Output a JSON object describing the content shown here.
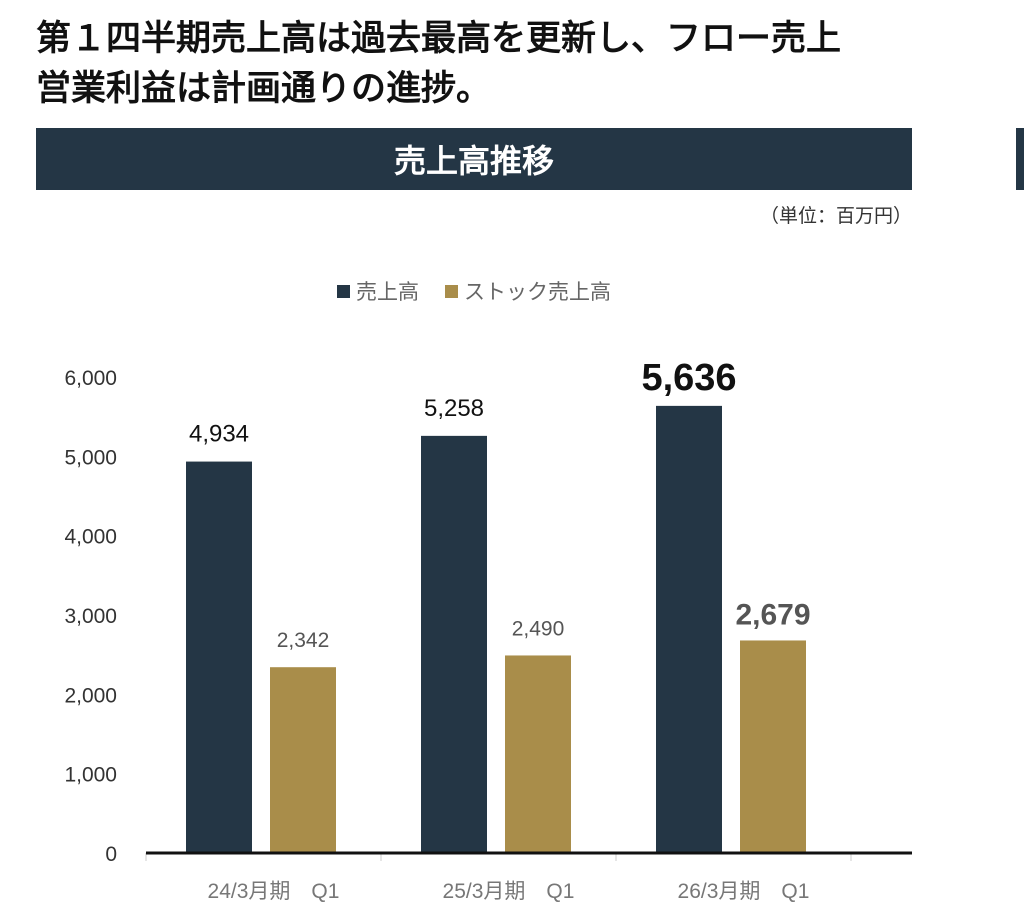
{
  "headline": {
    "line1": "第１四半期売上高は過去最高を更新し、フロー売上",
    "line2": "営業利益は計画通りの進捗。"
  },
  "section_title": "売上高推移",
  "unit_label": "（単位：百万円）",
  "chart_data": {
    "type": "bar",
    "title": "売上高推移",
    "xlabel": "",
    "ylabel": "",
    "ylim": [
      0,
      6000
    ],
    "yticks": [
      0,
      1000,
      2000,
      3000,
      4000,
      5000,
      6000
    ],
    "ytick_labels": [
      "0",
      "1,000",
      "2,000",
      "3,000",
      "4,000",
      "5,000",
      "6,000"
    ],
    "categories": [
      "24/3月期　Q1",
      "25/3月期　Q1",
      "26/3月期　Q1"
    ],
    "series": [
      {
        "name": "売上高",
        "color": "#243645",
        "values": [
          4934,
          5258,
          5636
        ],
        "labels": [
          "4,934",
          "5,258",
          "5,636"
        ]
      },
      {
        "name": "ストック売上高",
        "color": "#a98d4a",
        "values": [
          2342,
          2490,
          2679
        ],
        "labels": [
          "2,342",
          "2,490",
          "2,679"
        ]
      }
    ],
    "highlighted_category": 2,
    "legend_position": "top-center",
    "grid": false
  }
}
